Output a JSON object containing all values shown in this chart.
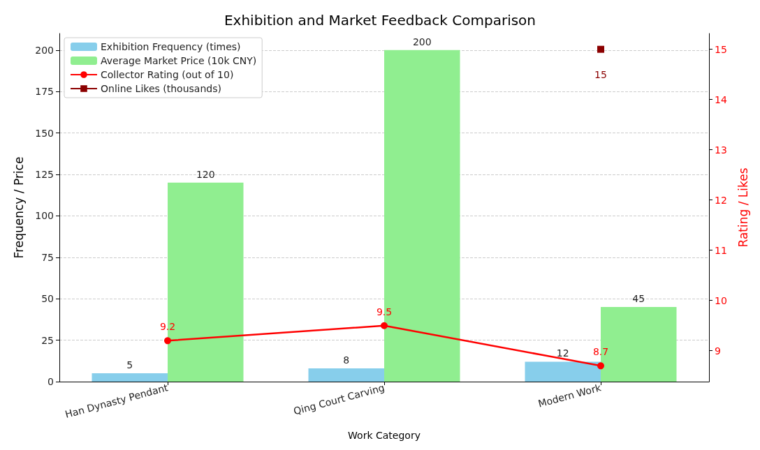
{
  "chart_data": {
    "type": "bar",
    "title": "Exhibition and Market Feedback Comparison",
    "xlabel": "Work Category",
    "ylabel": "Frequency / Price",
    "y2label": "Rating / Likes",
    "categories": [
      "Han Dynasty Pendant",
      "Qing Court Carving",
      "Modern Work"
    ],
    "series": [
      {
        "name": "Exhibition Frequency (times)",
        "color": "#87ceeb",
        "values": [
          5,
          8,
          12
        ]
      },
      {
        "name": "Average Market Price (10k CNY)",
        "color": "#90ee90",
        "values": [
          120,
          200,
          45
        ]
      },
      {
        "name": "Collector Rating (out of 10)",
        "type": "line",
        "axis": "y2",
        "color": "#ff0000",
        "marker": "circle",
        "values": [
          9.2,
          9.5,
          8.7
        ]
      },
      {
        "name": "Online Likes (thousands)",
        "type": "line",
        "axis": "y2",
        "color": "#8b0000",
        "marker": "square",
        "values": [
          null,
          null,
          15
        ]
      }
    ],
    "ylim": [
      0,
      210
    ],
    "yticks": [
      0,
      25,
      50,
      75,
      100,
      125,
      150,
      175,
      200
    ],
    "y2lim": [
      8.385,
      15.315
    ],
    "y2ticks": [
      9,
      10,
      11,
      12,
      13,
      14,
      15
    ],
    "grid": "y",
    "legend": "top left",
    "data_labels": true
  }
}
